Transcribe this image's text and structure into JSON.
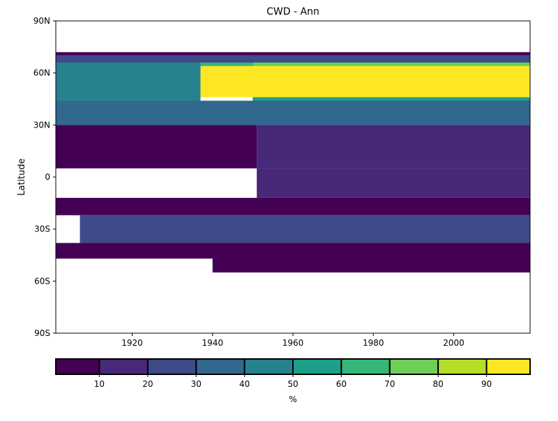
{
  "chart_data": {
    "type": "heatmap",
    "title": "CWD - Ann",
    "xlabel": "",
    "ylabel": "Latitude",
    "xlim": [
      1901,
      2019
    ],
    "ylim": [
      -90,
      90
    ],
    "x_ticks": [
      {
        "value": 1920,
        "label": "1920"
      },
      {
        "value": 1940,
        "label": "1940"
      },
      {
        "value": 1960,
        "label": "1960"
      },
      {
        "value": 1980,
        "label": "1980"
      },
      {
        "value": 2000,
        "label": "2000"
      }
    ],
    "y_ticks": [
      {
        "value": 90,
        "label": "90N"
      },
      {
        "value": 60,
        "label": "60N"
      },
      {
        "value": 30,
        "label": "30N"
      },
      {
        "value": 0,
        "label": "0"
      },
      {
        "value": -30,
        "label": "30S"
      },
      {
        "value": -60,
        "label": "60S"
      },
      {
        "value": -90,
        "label": "90S"
      }
    ],
    "colorbar": {
      "label": "%",
      "range": [
        1,
        99
      ],
      "boundaries": [
        1,
        10,
        20,
        30,
        40,
        50,
        60,
        70,
        80,
        90,
        99
      ],
      "tick_labels": [
        "10",
        "20",
        "30",
        "40",
        "50",
        "60",
        "70",
        "80",
        "90"
      ],
      "colors": [
        "#440154",
        "#482878",
        "#3e4a89",
        "#31688e",
        "#26828e",
        "#1f9e89",
        "#35b779",
        "#6ece58",
        "#b5de2b",
        "#fde725"
      ]
    },
    "cells": [
      {
        "x": [
          1901,
          2019
        ],
        "y": [
          70,
          72
        ],
        "value": 5
      },
      {
        "x": [
          1901,
          2019
        ],
        "y": [
          60,
          70
        ],
        "value": 25
      },
      {
        "x": [
          1901,
          1937
        ],
        "y": [
          44,
          66
        ],
        "value": 45
      },
      {
        "x": [
          1937,
          1950
        ],
        "y": [
          50,
          66
        ],
        "value": 60
      },
      {
        "x": [
          1950,
          2019
        ],
        "y": [
          44,
          66
        ],
        "value": 75
      },
      {
        "x": [
          1937,
          2019
        ],
        "y": [
          46,
          64
        ],
        "value": 98
      },
      {
        "x": [
          1950,
          2019
        ],
        "y": [
          40,
          46
        ],
        "value": 55
      },
      {
        "x": [
          1901,
          2019
        ],
        "y": [
          30,
          44
        ],
        "value": 35
      },
      {
        "x": [
          1901,
          1951
        ],
        "y": [
          5,
          30
        ],
        "value": 5
      },
      {
        "x": [
          1951,
          2019
        ],
        "y": [
          5,
          30
        ],
        "value": 15
      },
      {
        "x": [
          1951,
          2019
        ],
        "y": [
          -12,
          5
        ],
        "value": 15
      },
      {
        "x": [
          1901,
          2019
        ],
        "y": [
          -22,
          -12
        ],
        "value": 8
      },
      {
        "x": [
          1907,
          2019
        ],
        "y": [
          -38,
          -22
        ],
        "value": 25
      },
      {
        "x": [
          1901,
          2019
        ],
        "y": [
          -47,
          -38
        ],
        "value": 5
      },
      {
        "x": [
          1940,
          2019
        ],
        "y": [
          -55,
          -47
        ],
        "value": 5
      }
    ]
  }
}
